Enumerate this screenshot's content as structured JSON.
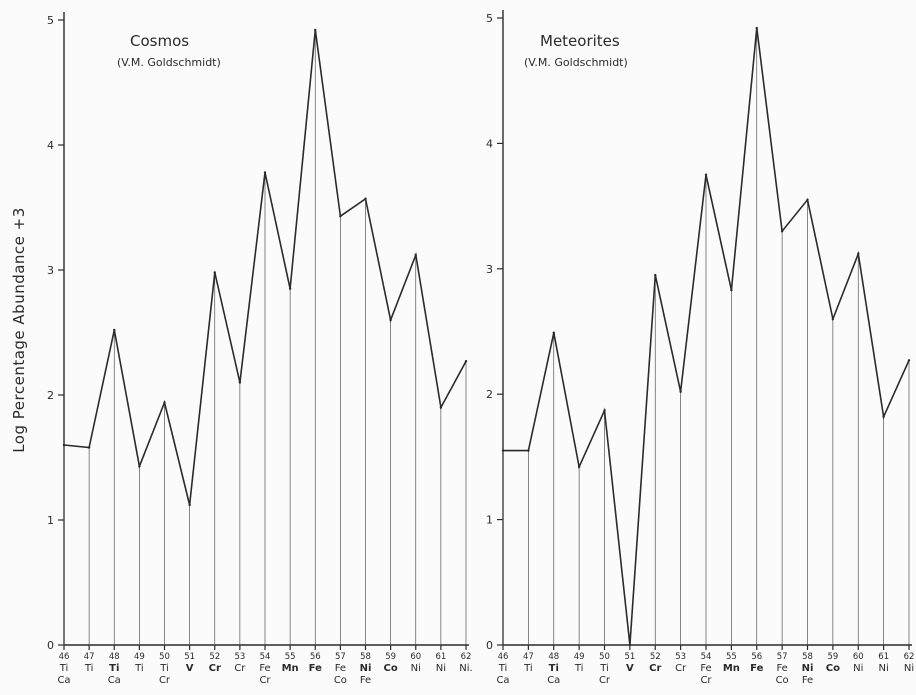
{
  "chart_data": [
    {
      "type": "line",
      "title": "Cosmos",
      "subtitle": "(V.M. Goldschmidt)",
      "ylabel": "Log Percentage Abundance +3",
      "ylim": [
        0,
        5
      ],
      "yticks": [
        0,
        1,
        2,
        3,
        4,
        5
      ],
      "grid": false,
      "x_mass": [
        "46",
        "47",
        "48",
        "49",
        "50",
        "51",
        "52",
        "53",
        "54",
        "55",
        "56",
        "57",
        "58",
        "59",
        "60",
        "61",
        "62"
      ],
      "x_elements": [
        [
          "Ti",
          "Ca"
        ],
        [
          "Ti"
        ],
        [
          "Ti",
          "Ca"
        ],
        [
          "Ti"
        ],
        [
          "Ti",
          "Cr"
        ],
        [
          "V"
        ],
        [
          "Cr"
        ],
        [
          "Cr"
        ],
        [
          "Fe",
          "Cr"
        ],
        [
          "Mn"
        ],
        [
          "Fe"
        ],
        [
          "Fe",
          "Co"
        ],
        [
          "Ni",
          "Fe"
        ],
        [
          "Co"
        ],
        [
          "Ni"
        ],
        [
          "Ni"
        ],
        [
          "Ni."
        ]
      ],
      "major_elements": [
        false,
        false,
        true,
        false,
        false,
        true,
        true,
        false,
        false,
        true,
        true,
        false,
        true,
        true,
        false,
        false,
        false
      ],
      "series": [
        {
          "values": [
            1.6,
            1.58,
            2.52,
            1.43,
            1.94,
            1.12,
            2.98,
            2.1,
            3.78,
            2.85,
            4.92,
            3.43,
            3.57,
            2.6,
            3.12,
            1.9,
            2.27
          ]
        }
      ]
    },
    {
      "type": "line",
      "title": "Meteorites",
      "subtitle": "(V.M. Goldschmidt)",
      "ylabel": "",
      "ylim": [
        0,
        5
      ],
      "yticks": [
        0,
        1,
        2,
        3,
        4,
        5
      ],
      "grid": false,
      "x_mass": [
        "46",
        "47",
        "48",
        "49",
        "50",
        "51",
        "52",
        "53",
        "54",
        "55",
        "56",
        "57",
        "58",
        "59",
        "60",
        "61",
        "62"
      ],
      "x_elements": [
        [
          "Ti",
          "Ca"
        ],
        [
          "Ti"
        ],
        [
          "Ti",
          "Ca"
        ],
        [
          "Ti"
        ],
        [
          "Ti",
          "Cr"
        ],
        [
          "V"
        ],
        [
          "Cr"
        ],
        [
          "Cr"
        ],
        [
          "Fe",
          "Cr"
        ],
        [
          "Mn"
        ],
        [
          "Fe"
        ],
        [
          "Fe",
          "Co"
        ],
        [
          "Ni",
          "Fe"
        ],
        [
          "Co"
        ],
        [
          "Ni"
        ],
        [
          "Ni"
        ],
        [
          "Ni"
        ]
      ],
      "major_elements": [
        false,
        false,
        true,
        false,
        false,
        true,
        true,
        false,
        false,
        true,
        true,
        false,
        true,
        true,
        false,
        false,
        false
      ],
      "series": [
        {
          "values": [
            1.55,
            1.55,
            2.49,
            1.42,
            1.87,
            0.0,
            2.95,
            2.02,
            3.75,
            2.83,
            4.92,
            3.3,
            3.55,
            2.6,
            3.12,
            1.82,
            2.27
          ]
        }
      ]
    }
  ]
}
